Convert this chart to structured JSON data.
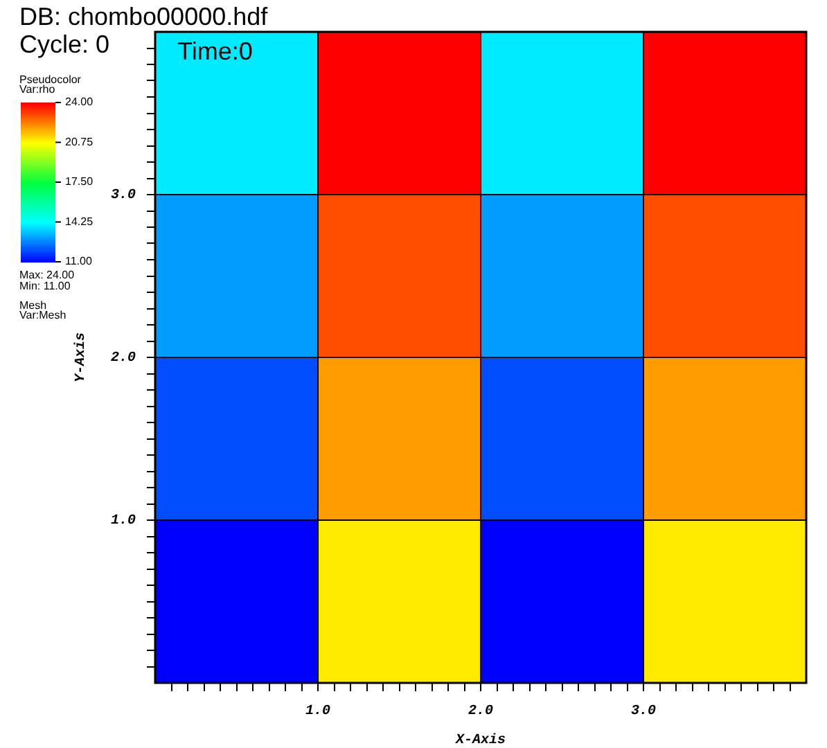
{
  "chart_data": {
    "type": "heatmap",
    "title": "DB: chombo00000.hdf",
    "xlabel": "X-Axis",
    "ylabel": "Y-Axis",
    "legend_title": "Pseudocolor",
    "annotations": [
      "Cycle: 0",
      "Time:0",
      "Var:rho",
      "Max: 24.00",
      "Min: 11.00",
      "Mesh",
      "Var:Mesh"
    ],
    "x": [
      0.5,
      1.5,
      2.5,
      3.5
    ],
    "cells": [
      [
        14,
        24,
        14,
        24
      ],
      [
        13,
        23,
        13,
        23
      ],
      [
        12,
        22,
        12,
        22
      ],
      [
        11,
        21,
        11,
        21
      ]
    ],
    "xlim": [
      0,
      4
    ],
    "ylim": [
      0,
      4
    ],
    "xticks": [
      {
        "value": 0.1,
        "label": null
      },
      {
        "value": 0.2,
        "label": null
      },
      {
        "value": 0.3,
        "label": null
      },
      {
        "value": 0.4,
        "label": null
      },
      {
        "value": 0.5,
        "label": null
      },
      {
        "value": 0.6,
        "label": null
      },
      {
        "value": 0.7,
        "label": null
      },
      {
        "value": 0.8,
        "label": null
      },
      {
        "value": 0.9,
        "label": null
      },
      {
        "value": 1,
        "label": "1.0"
      },
      {
        "value": 1.1,
        "label": null
      },
      {
        "value": 1.2,
        "label": null
      },
      {
        "value": 1.3,
        "label": null
      },
      {
        "value": 1.4,
        "label": null
      },
      {
        "value": 1.5,
        "label": null
      },
      {
        "value": 1.6,
        "label": null
      },
      {
        "value": 1.7,
        "label": null
      },
      {
        "value": 1.8,
        "label": null
      },
      {
        "value": 1.9,
        "label": null
      },
      {
        "value": 2,
        "label": "2.0"
      },
      {
        "value": 2.1,
        "label": null
      },
      {
        "value": 2.2,
        "label": null
      },
      {
        "value": 2.3,
        "label": null
      },
      {
        "value": 2.4,
        "label": null
      },
      {
        "value": 2.5,
        "label": null
      },
      {
        "value": 2.6,
        "label": null
      },
      {
        "value": 2.7,
        "label": null
      },
      {
        "value": 2.8,
        "label": null
      },
      {
        "value": 2.9,
        "label": null
      },
      {
        "value": 3,
        "label": "3.0"
      },
      {
        "value": 3.1,
        "label": null
      },
      {
        "value": 3.2,
        "label": null
      },
      {
        "value": 3.3,
        "label": null
      },
      {
        "value": 3.4,
        "label": null
      },
      {
        "value": 3.5,
        "label": null
      },
      {
        "value": 3.6,
        "label": null
      },
      {
        "value": 3.7,
        "label": null
      },
      {
        "value": 3.8,
        "label": null
      },
      {
        "value": 3.9,
        "label": null
      }
    ],
    "yticks": [
      {
        "value": 0.1,
        "label": null
      },
      {
        "value": 0.2,
        "label": null
      },
      {
        "value": 0.3,
        "label": null
      },
      {
        "value": 0.4,
        "label": null
      },
      {
        "value": 0.5,
        "label": null
      },
      {
        "value": 0.6,
        "label": null
      },
      {
        "value": 0.7,
        "label": null
      },
      {
        "value": 0.8,
        "label": null
      },
      {
        "value": 0.9,
        "label": null
      },
      {
        "value": 1,
        "label": "1.0"
      },
      {
        "value": 1.1,
        "label": null
      },
      {
        "value": 1.2,
        "label": null
      },
      {
        "value": 1.3,
        "label": null
      },
      {
        "value": 1.4,
        "label": null
      },
      {
        "value": 1.5,
        "label": null
      },
      {
        "value": 1.6,
        "label": null
      },
      {
        "value": 1.7,
        "label": null
      },
      {
        "value": 1.8,
        "label": null
      },
      {
        "value": 1.9,
        "label": null
      },
      {
        "value": 2,
        "label": "2.0"
      },
      {
        "value": 2.1,
        "label": null
      },
      {
        "value": 2.2,
        "label": null
      },
      {
        "value": 2.3,
        "label": null
      },
      {
        "value": 2.4,
        "label": null
      },
      {
        "value": 2.5,
        "label": null
      },
      {
        "value": 2.6,
        "label": null
      },
      {
        "value": 2.7,
        "label": null
      },
      {
        "value": 2.8,
        "label": null
      },
      {
        "value": 2.9,
        "label": null
      },
      {
        "value": 3,
        "label": "3.0"
      },
      {
        "value": 3.1,
        "label": null
      },
      {
        "value": 3.2,
        "label": null
      },
      {
        "value": 3.3,
        "label": null
      },
      {
        "value": 3.4,
        "label": null
      },
      {
        "value": 3.5,
        "label": null
      },
      {
        "value": 3.6,
        "label": null
      },
      {
        "value": 3.7,
        "label": null
      },
      {
        "value": 3.8,
        "label": null
      },
      {
        "value": 3.9,
        "label": null
      }
    ],
    "clim": [
      11,
      24
    ],
    "cticks": [
      {
        "value": 11,
        "label": "11.00"
      },
      {
        "value": 14.25,
        "label": "14.25"
      },
      {
        "value": 17.5,
        "label": "17.50"
      },
      {
        "value": 20.75,
        "label": "20.75"
      },
      {
        "value": 24,
        "label": "24.00"
      }
    ]
  }
}
